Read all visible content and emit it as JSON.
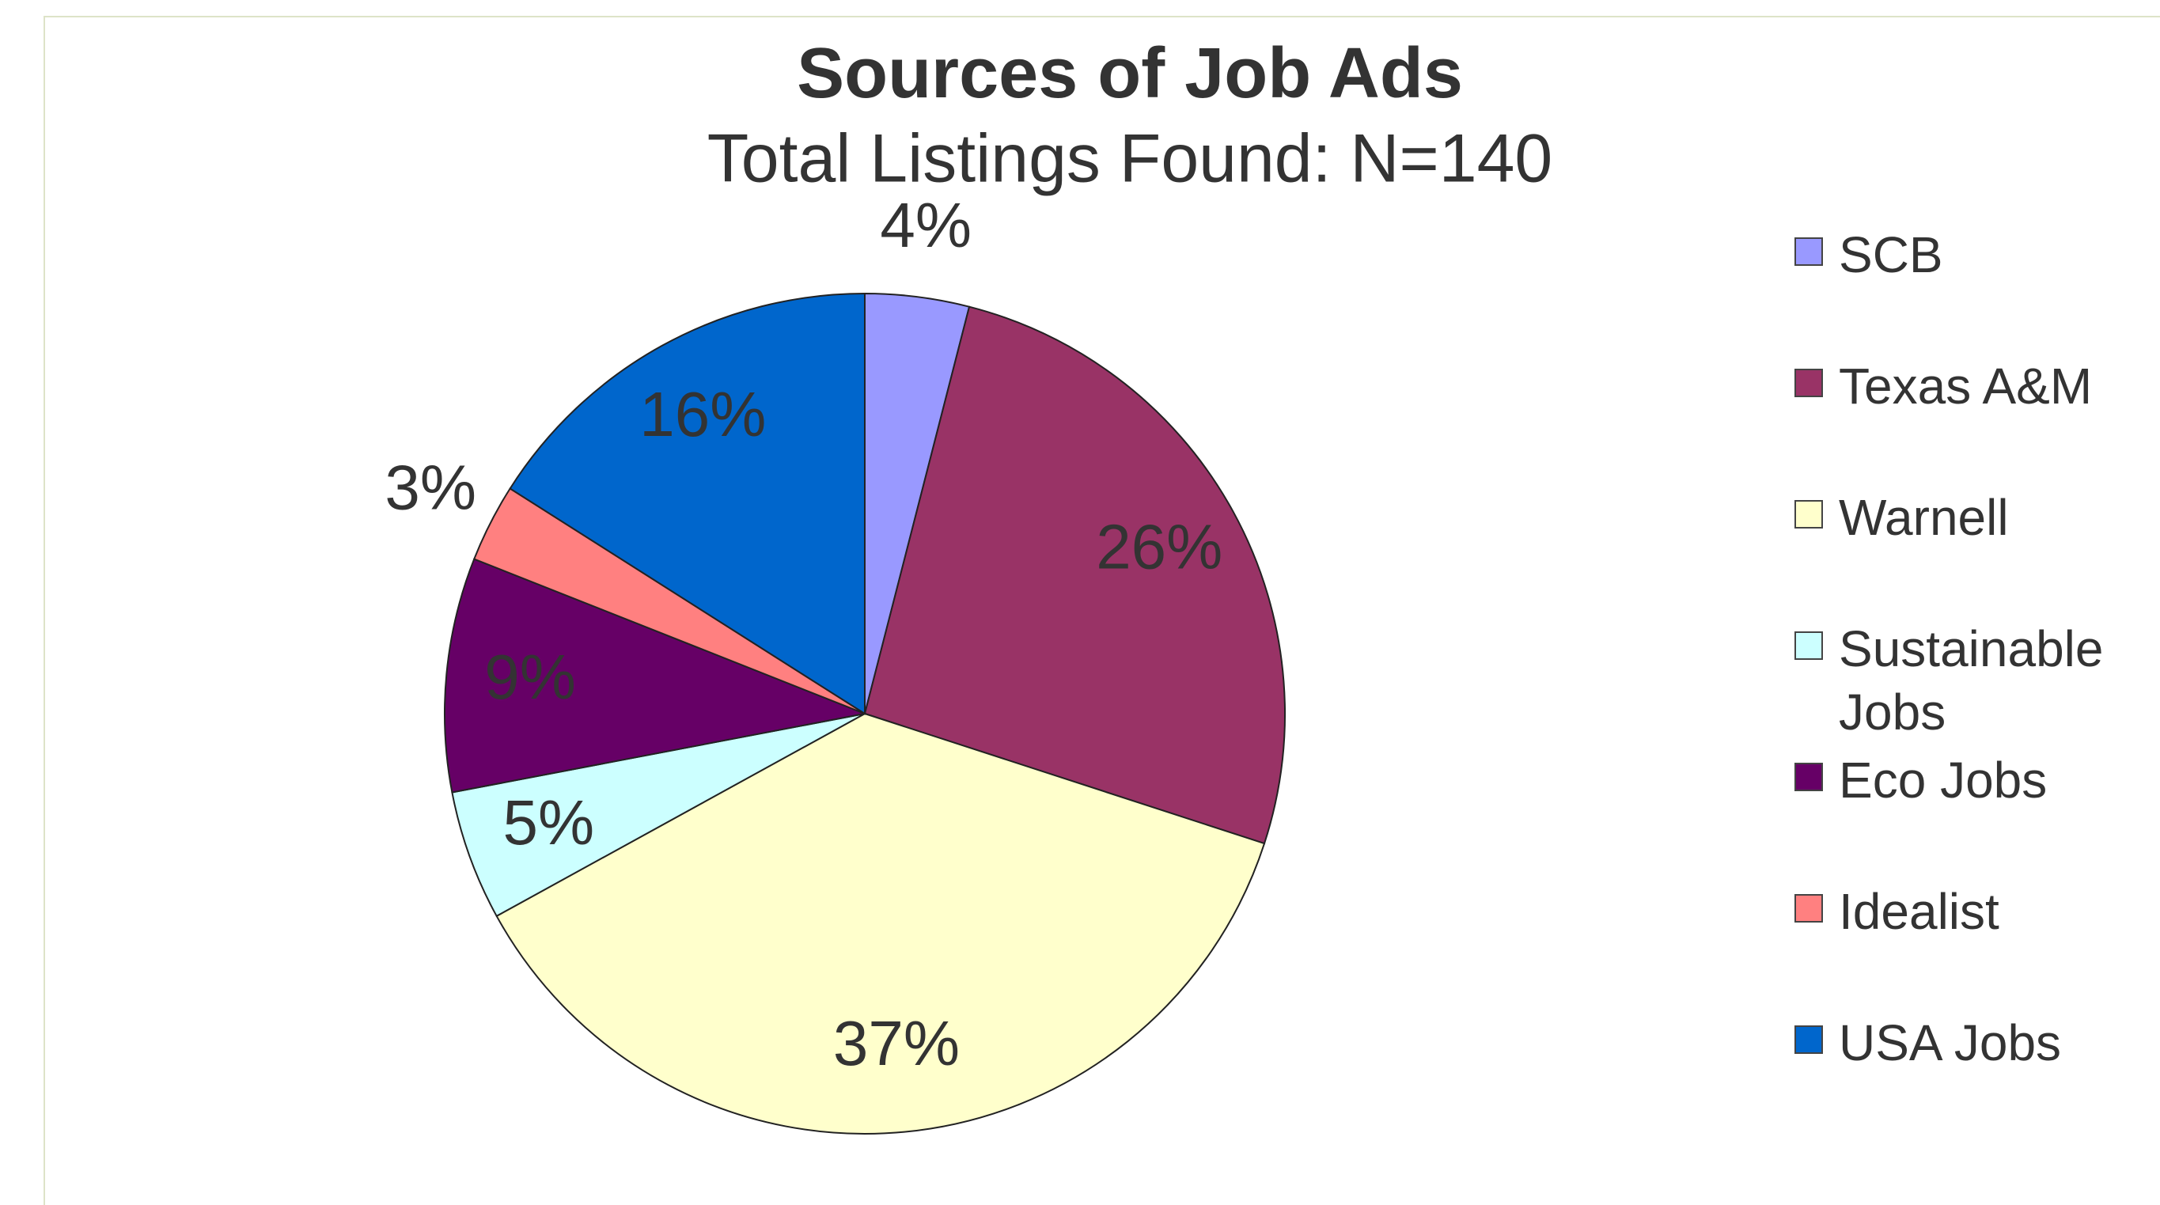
{
  "chart_data": {
    "type": "pie",
    "title": "Sources of Job Ads",
    "subtitle": "Total Listings Found: N=140",
    "categories": [
      "SCB",
      "Texas A&M",
      "Warnell",
      "Sustainable Jobs",
      "Eco Jobs",
      "Idealist",
      "USA Jobs"
    ],
    "values": [
      4,
      26,
      37,
      5,
      9,
      3,
      16
    ],
    "value_labels": [
      "4%",
      "26%",
      "37%",
      "5%",
      "9%",
      "3%",
      "16%"
    ],
    "colors": [
      "#9999ff",
      "#993366",
      "#ffffcc",
      "#ccffff",
      "#660066",
      "#ff8080",
      "#0066cc"
    ],
    "legend": "right"
  }
}
